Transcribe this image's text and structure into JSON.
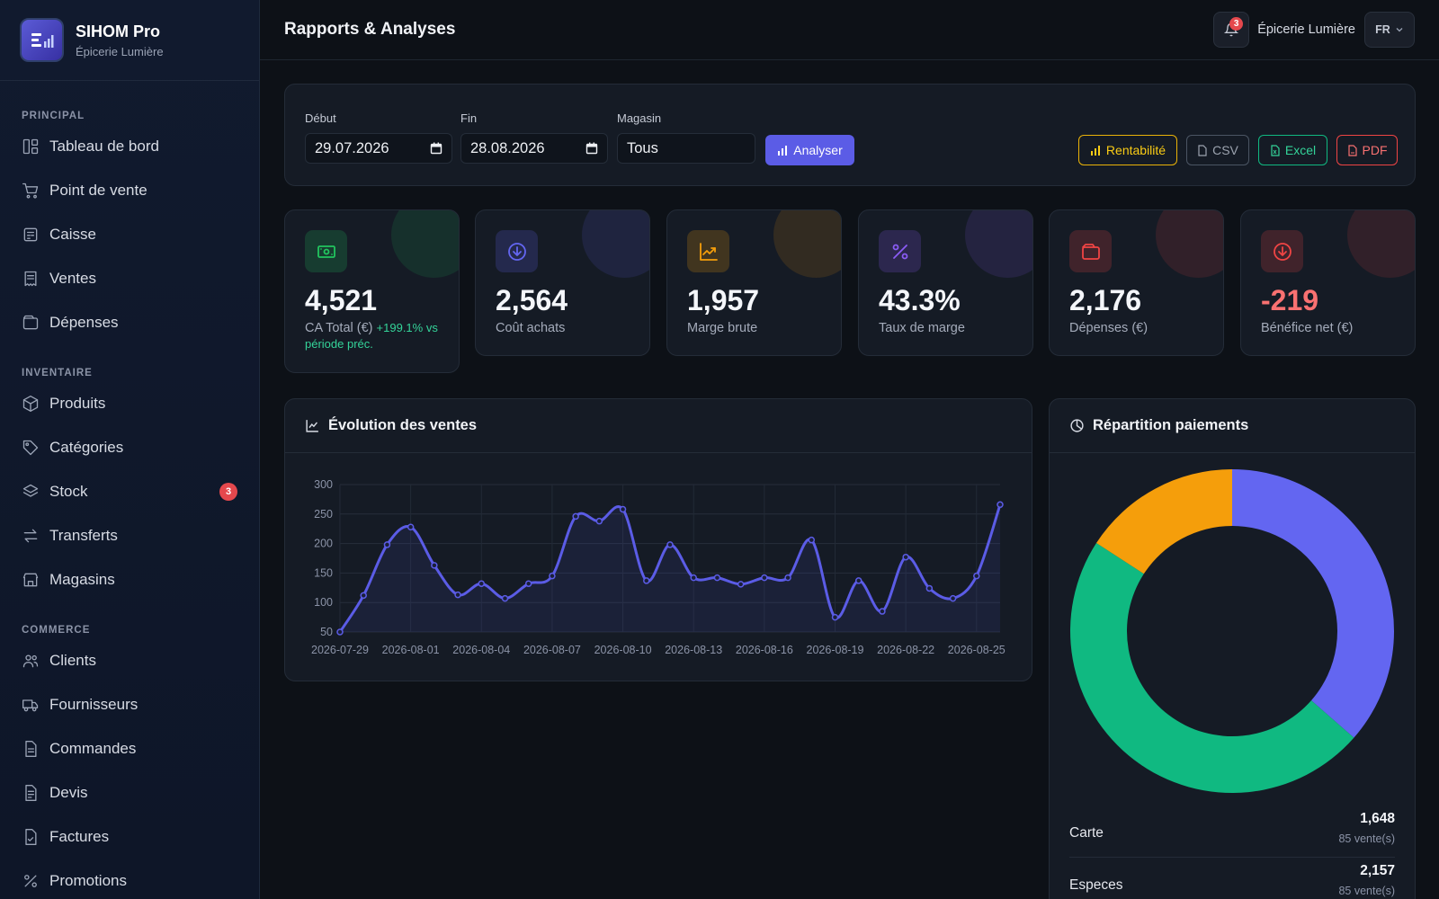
{
  "brand": {
    "name": "SIHOM Pro",
    "store": "Épicerie Lumière"
  },
  "nav": [
    {
      "title": "PRINCIPAL",
      "items": [
        {
          "label": "Tableau de bord",
          "icon": "dashboard-icon"
        },
        {
          "label": "Point de vente",
          "icon": "cart-icon"
        },
        {
          "label": "Caisse",
          "icon": "cash-register-icon"
        },
        {
          "label": "Ventes",
          "icon": "receipt-icon"
        },
        {
          "label": "Dépenses",
          "icon": "wallet-icon"
        }
      ]
    },
    {
      "title": "INVENTAIRE",
      "items": [
        {
          "label": "Produits",
          "icon": "box-icon"
        },
        {
          "label": "Catégories",
          "icon": "tag-icon"
        },
        {
          "label": "Stock",
          "icon": "layers-icon",
          "badge": "3"
        },
        {
          "label": "Transferts",
          "icon": "transfer-icon"
        },
        {
          "label": "Magasins",
          "icon": "store-icon"
        }
      ]
    },
    {
      "title": "COMMERCE",
      "items": [
        {
          "label": "Clients",
          "icon": "users-icon"
        },
        {
          "label": "Fournisseurs",
          "icon": "truck-icon"
        },
        {
          "label": "Commandes",
          "icon": "document-icon"
        },
        {
          "label": "Devis",
          "icon": "quote-icon"
        },
        {
          "label": "Factures",
          "icon": "invoice-icon"
        },
        {
          "label": "Promotions",
          "icon": "percent-icon"
        }
      ]
    }
  ],
  "header": {
    "title": "Rapports & Analyses",
    "notifications": "3",
    "store": "Épicerie Lumière",
    "lang": "FR"
  },
  "filters": {
    "start_label": "Début",
    "start_value": "29.07.2026",
    "end_label": "Fin",
    "end_value": "28.08.2026",
    "store_label": "Magasin",
    "store_value": "Tous",
    "analyse": "Analyser",
    "rentabilite": "Rentabilité",
    "csv": "CSV",
    "excel": "Excel",
    "pdf": "PDF"
  },
  "kpis": [
    {
      "value": "4,521",
      "label": "CA Total (€)",
      "trend": "+199.1% vs période préc.",
      "color": "#22c55e",
      "icon": "money-icon"
    },
    {
      "value": "2,564",
      "label": "Coût achats",
      "color": "#6366f1",
      "icon": "arrow-down-circle-icon"
    },
    {
      "value": "1,957",
      "label": "Marge brute",
      "color": "#f59e0b",
      "icon": "trending-up-icon"
    },
    {
      "value": "43.3%",
      "label": "Taux de marge",
      "color": "#8b5cf6",
      "icon": "percent-icon"
    },
    {
      "value": "2,176",
      "label": "Dépenses (€)",
      "color": "#ef4444",
      "icon": "wallet-icon"
    },
    {
      "value": "-219",
      "label": "Bénéfice net (€)",
      "color": "#ef4444",
      "icon": "arrow-down-circle-icon",
      "negative": true
    }
  ],
  "sales_chart": {
    "title": "Évolution des ventes"
  },
  "payments": {
    "title": "Répartition paiements",
    "rows": [
      {
        "name": "Carte",
        "amount": "1,648",
        "count": "85 vente(s)"
      },
      {
        "name": "Especes",
        "amount": "2,157",
        "count": "85 vente(s)"
      }
    ]
  },
  "chart_data": [
    {
      "type": "line",
      "title": "Évolution des ventes",
      "x": [
        "2026-07-29",
        "2026-07-30",
        "2026-07-31",
        "2026-08-01",
        "2026-08-02",
        "2026-08-03",
        "2026-08-04",
        "2026-08-05",
        "2026-08-06",
        "2026-08-07",
        "2026-08-08",
        "2026-08-09",
        "2026-08-10",
        "2026-08-11",
        "2026-08-12",
        "2026-08-13",
        "2026-08-14",
        "2026-08-15",
        "2026-08-16",
        "2026-08-17",
        "2026-08-18",
        "2026-08-19",
        "2026-08-20",
        "2026-08-21",
        "2026-08-22",
        "2026-08-23",
        "2026-08-24",
        "2026-08-25",
        "2026-08-26"
      ],
      "x_ticks": [
        "2026-07-29",
        "2026-08-01",
        "2026-08-04",
        "2026-08-07",
        "2026-08-10",
        "2026-08-13",
        "2026-08-16",
        "2026-08-19",
        "2026-08-22",
        "2026-08-25"
      ],
      "values": [
        50,
        112,
        198,
        228,
        163,
        113,
        132,
        107,
        132,
        145,
        246,
        238,
        258,
        137,
        198,
        142,
        142,
        131,
        142,
        142,
        206,
        75,
        137,
        85,
        177,
        124,
        107,
        145,
        266
      ],
      "ylim": [
        50,
        300
      ],
      "y_ticks": [
        50,
        100,
        150,
        200,
        250,
        300
      ],
      "grid": true,
      "color": "#5b5ce6"
    },
    {
      "type": "pie",
      "title": "Répartition paiements",
      "slices": [
        {
          "label": "Carte",
          "value": 1648,
          "color": "#6366f1"
        },
        {
          "label": "Especes",
          "value": 2157,
          "color": "#10b981"
        },
        {
          "value": 716,
          "color": "#f59e0b"
        }
      ],
      "donut": true
    }
  ]
}
